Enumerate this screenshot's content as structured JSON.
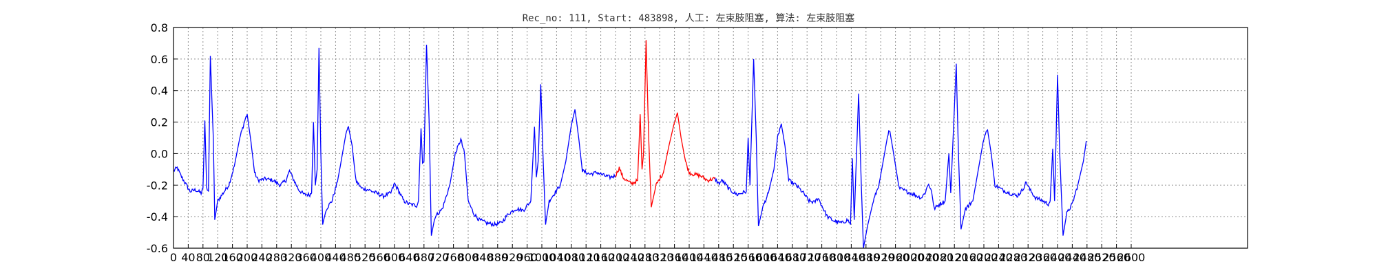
{
  "chart_data": {
    "type": "line",
    "title": "Rec_no: 111, Start: 483898, 人工: 左束肢阻塞, 算法: 左束肢阻塞",
    "xlabel": "",
    "ylabel": "",
    "xlim": [
      0,
      3230
    ],
    "ylim": [
      -0.6,
      0.8
    ],
    "grid": true,
    "yticks": [
      "0.8",
      "0.6",
      "0.4",
      "0.2",
      "0.0",
      "-0.2",
      "-0.4",
      "-0.6"
    ],
    "xticks": [
      "0",
      "40",
      "80",
      "120",
      "160",
      "200",
      "240",
      "280",
      "320",
      "360",
      "400",
      "440",
      "480",
      "520",
      "560",
      "600",
      "640",
      "680",
      "720",
      "760",
      "800",
      "840",
      "880",
      "920",
      "960",
      "1000",
      "1040",
      "1080",
      "1120",
      "1160",
      "1200",
      "1240",
      "1280",
      "1320",
      "1360",
      "1400",
      "1440",
      "1480",
      "1520",
      "1560",
      "1600",
      "1640",
      "1680",
      "1720",
      "1760",
      "1800",
      "1840",
      "1880",
      "1920",
      "1960",
      "2000",
      "2040",
      "2080",
      "2120",
      "2160",
      "2200",
      "2240",
      "2280",
      "2320",
      "2360",
      "2400",
      "2440",
      "2480",
      "2520",
      "2560",
      "2600"
    ],
    "series_colors": {
      "signal": "#0000ff",
      "highlight": "#ff0000"
    },
    "highlight_range": [
      1200,
      1470
    ],
    "keypoints": [
      [
        0,
        -0.11
      ],
      [
        10,
        -0.09
      ],
      [
        20,
        -0.14
      ],
      [
        35,
        -0.2
      ],
      [
        45,
        -0.24
      ],
      [
        60,
        -0.23
      ],
      [
        75,
        -0.25
      ],
      [
        80,
        -0.22
      ],
      [
        85,
        0.21
      ],
      [
        90,
        -0.22
      ],
      [
        95,
        -0.24
      ],
      [
        100,
        0.62
      ],
      [
        108,
        0.1
      ],
      [
        112,
        -0.42
      ],
      [
        120,
        -0.3
      ],
      [
        135,
        -0.25
      ],
      [
        150,
        -0.2
      ],
      [
        165,
        -0.08
      ],
      [
        180,
        0.1
      ],
      [
        195,
        0.22
      ],
      [
        200,
        0.25
      ],
      [
        210,
        0.08
      ],
      [
        220,
        -0.12
      ],
      [
        230,
        -0.17
      ],
      [
        250,
        -0.16
      ],
      [
        270,
        -0.17
      ],
      [
        290,
        -0.2
      ],
      [
        305,
        -0.17
      ],
      [
        315,
        -0.11
      ],
      [
        325,
        -0.16
      ],
      [
        340,
        -0.23
      ],
      [
        355,
        -0.26
      ],
      [
        370,
        -0.26
      ],
      [
        375,
        -0.25
      ],
      [
        380,
        0.2
      ],
      [
        385,
        -0.2
      ],
      [
        390,
        -0.1
      ],
      [
        395,
        0.67
      ],
      [
        400,
        0.0
      ],
      [
        405,
        -0.45
      ],
      [
        415,
        -0.35
      ],
      [
        430,
        -0.3
      ],
      [
        445,
        -0.18
      ],
      [
        455,
        -0.05
      ],
      [
        470,
        0.15
      ],
      [
        475,
        0.17
      ],
      [
        485,
        0.05
      ],
      [
        495,
        -0.17
      ],
      [
        510,
        -0.22
      ],
      [
        530,
        -0.23
      ],
      [
        550,
        -0.25
      ],
      [
        570,
        -0.27
      ],
      [
        590,
        -0.25
      ],
      [
        600,
        -0.19
      ],
      [
        612,
        -0.24
      ],
      [
        625,
        -0.3
      ],
      [
        640,
        -0.32
      ],
      [
        660,
        -0.33
      ],
      [
        665,
        -0.3
      ],
      [
        672,
        0.16
      ],
      [
        676,
        -0.06
      ],
      [
        680,
        -0.05
      ],
      [
        687,
        0.69
      ],
      [
        694,
        0.2
      ],
      [
        700,
        -0.52
      ],
      [
        710,
        -0.4
      ],
      [
        730,
        -0.35
      ],
      [
        750,
        -0.2
      ],
      [
        765,
        0.0
      ],
      [
        780,
        0.09
      ],
      [
        790,
        0.0
      ],
      [
        800,
        -0.3
      ],
      [
        815,
        -0.38
      ],
      [
        830,
        -0.42
      ],
      [
        850,
        -0.44
      ],
      [
        870,
        -0.45
      ],
      [
        890,
        -0.44
      ],
      [
        910,
        -0.38
      ],
      [
        930,
        -0.35
      ],
      [
        950,
        -0.36
      ],
      [
        970,
        -0.3
      ],
      [
        980,
        0.17
      ],
      [
        985,
        -0.15
      ],
      [
        990,
        -0.05
      ],
      [
        997,
        0.44
      ],
      [
        1003,
        0.0
      ],
      [
        1010,
        -0.45
      ],
      [
        1020,
        -0.3
      ],
      [
        1035,
        -0.25
      ],
      [
        1050,
        -0.2
      ],
      [
        1065,
        -0.05
      ],
      [
        1080,
        0.18
      ],
      [
        1090,
        0.28
      ],
      [
        1100,
        0.1
      ],
      [
        1110,
        -0.11
      ],
      [
        1130,
        -0.13
      ],
      [
        1150,
        -0.12
      ],
      [
        1170,
        -0.14
      ],
      [
        1185,
        -0.15
      ],
      [
        1200,
        -0.14
      ],
      [
        1210,
        -0.09
      ],
      [
        1220,
        -0.15
      ],
      [
        1235,
        -0.18
      ],
      [
        1245,
        -0.19
      ],
      [
        1260,
        -0.17
      ],
      [
        1267,
        0.25
      ],
      [
        1272,
        -0.1
      ],
      [
        1276,
        0.0
      ],
      [
        1283,
        0.72
      ],
      [
        1290,
        0.1
      ],
      [
        1297,
        -0.34
      ],
      [
        1310,
        -0.2
      ],
      [
        1330,
        -0.12
      ],
      [
        1345,
        0.05
      ],
      [
        1360,
        0.2
      ],
      [
        1368,
        0.26
      ],
      [
        1378,
        0.1
      ],
      [
        1390,
        -0.05
      ],
      [
        1400,
        -0.12
      ],
      [
        1410,
        -0.13
      ],
      [
        1430,
        -0.14
      ],
      [
        1450,
        -0.17
      ],
      [
        1465,
        -0.16
      ],
      [
        1470,
        -0.16
      ],
      [
        1480,
        -0.19
      ],
      [
        1490,
        -0.17
      ],
      [
        1510,
        -0.23
      ],
      [
        1530,
        -0.26
      ],
      [
        1555,
        -0.24
      ],
      [
        1560,
        0.1
      ],
      [
        1565,
        -0.2
      ],
      [
        1575,
        0.6
      ],
      [
        1582,
        0.1
      ],
      [
        1588,
        -0.46
      ],
      [
        1600,
        -0.34
      ],
      [
        1615,
        -0.25
      ],
      [
        1630,
        -0.1
      ],
      [
        1640,
        0.1
      ],
      [
        1650,
        0.19
      ],
      [
        1660,
        0.05
      ],
      [
        1670,
        -0.17
      ],
      [
        1690,
        -0.2
      ],
      [
        1710,
        -0.25
      ],
      [
        1725,
        -0.3
      ],
      [
        1740,
        -0.31
      ],
      [
        1750,
        -0.28
      ],
      [
        1760,
        -0.33
      ],
      [
        1775,
        -0.4
      ],
      [
        1795,
        -0.43
      ],
      [
        1815,
        -0.44
      ],
      [
        1830,
        -0.42
      ],
      [
        1838,
        -0.45
      ],
      [
        1843,
        -0.03
      ],
      [
        1848,
        -0.42
      ],
      [
        1860,
        0.38
      ],
      [
        1866,
        -0.1
      ],
      [
        1873,
        -0.6
      ],
      [
        1885,
        -0.45
      ],
      [
        1900,
        -0.3
      ],
      [
        1915,
        -0.2
      ],
      [
        1925,
        -0.07
      ],
      [
        1940,
        0.13
      ],
      [
        1945,
        0.14
      ],
      [
        1955,
        0.0
      ],
      [
        1970,
        -0.22
      ],
      [
        1990,
        -0.24
      ],
      [
        2010,
        -0.26
      ],
      [
        2030,
        -0.28
      ],
      [
        2040,
        -0.25
      ],
      [
        2050,
        -0.19
      ],
      [
        2058,
        -0.24
      ],
      [
        2065,
        -0.35
      ],
      [
        2080,
        -0.32
      ],
      [
        2095,
        -0.3
      ],
      [
        2105,
        0.0
      ],
      [
        2110,
        -0.25
      ],
      [
        2125,
        0.57
      ],
      [
        2131,
        0.0
      ],
      [
        2138,
        -0.48
      ],
      [
        2150,
        -0.35
      ],
      [
        2170,
        -0.3
      ],
      [
        2185,
        -0.1
      ],
      [
        2200,
        0.1
      ],
      [
        2210,
        0.15
      ],
      [
        2220,
        0.0
      ],
      [
        2230,
        -0.2
      ],
      [
        2250,
        -0.23
      ],
      [
        2270,
        -0.25
      ],
      [
        2290,
        -0.27
      ],
      [
        2305,
        -0.23
      ],
      [
        2315,
        -0.18
      ],
      [
        2325,
        -0.23
      ],
      [
        2340,
        -0.28
      ],
      [
        2360,
        -0.3
      ],
      [
        2375,
        -0.32
      ],
      [
        2380,
        -0.3
      ],
      [
        2387,
        0.03
      ],
      [
        2392,
        -0.3
      ],
      [
        2400,
        0.5
      ],
      [
        2406,
        0.0
      ],
      [
        2415,
        -0.52
      ],
      [
        2425,
        -0.38
      ],
      [
        2440,
        -0.32
      ],
      [
        2455,
        -0.2
      ],
      [
        2470,
        -0.05
      ],
      [
        2478,
        0.08
      ]
    ]
  }
}
